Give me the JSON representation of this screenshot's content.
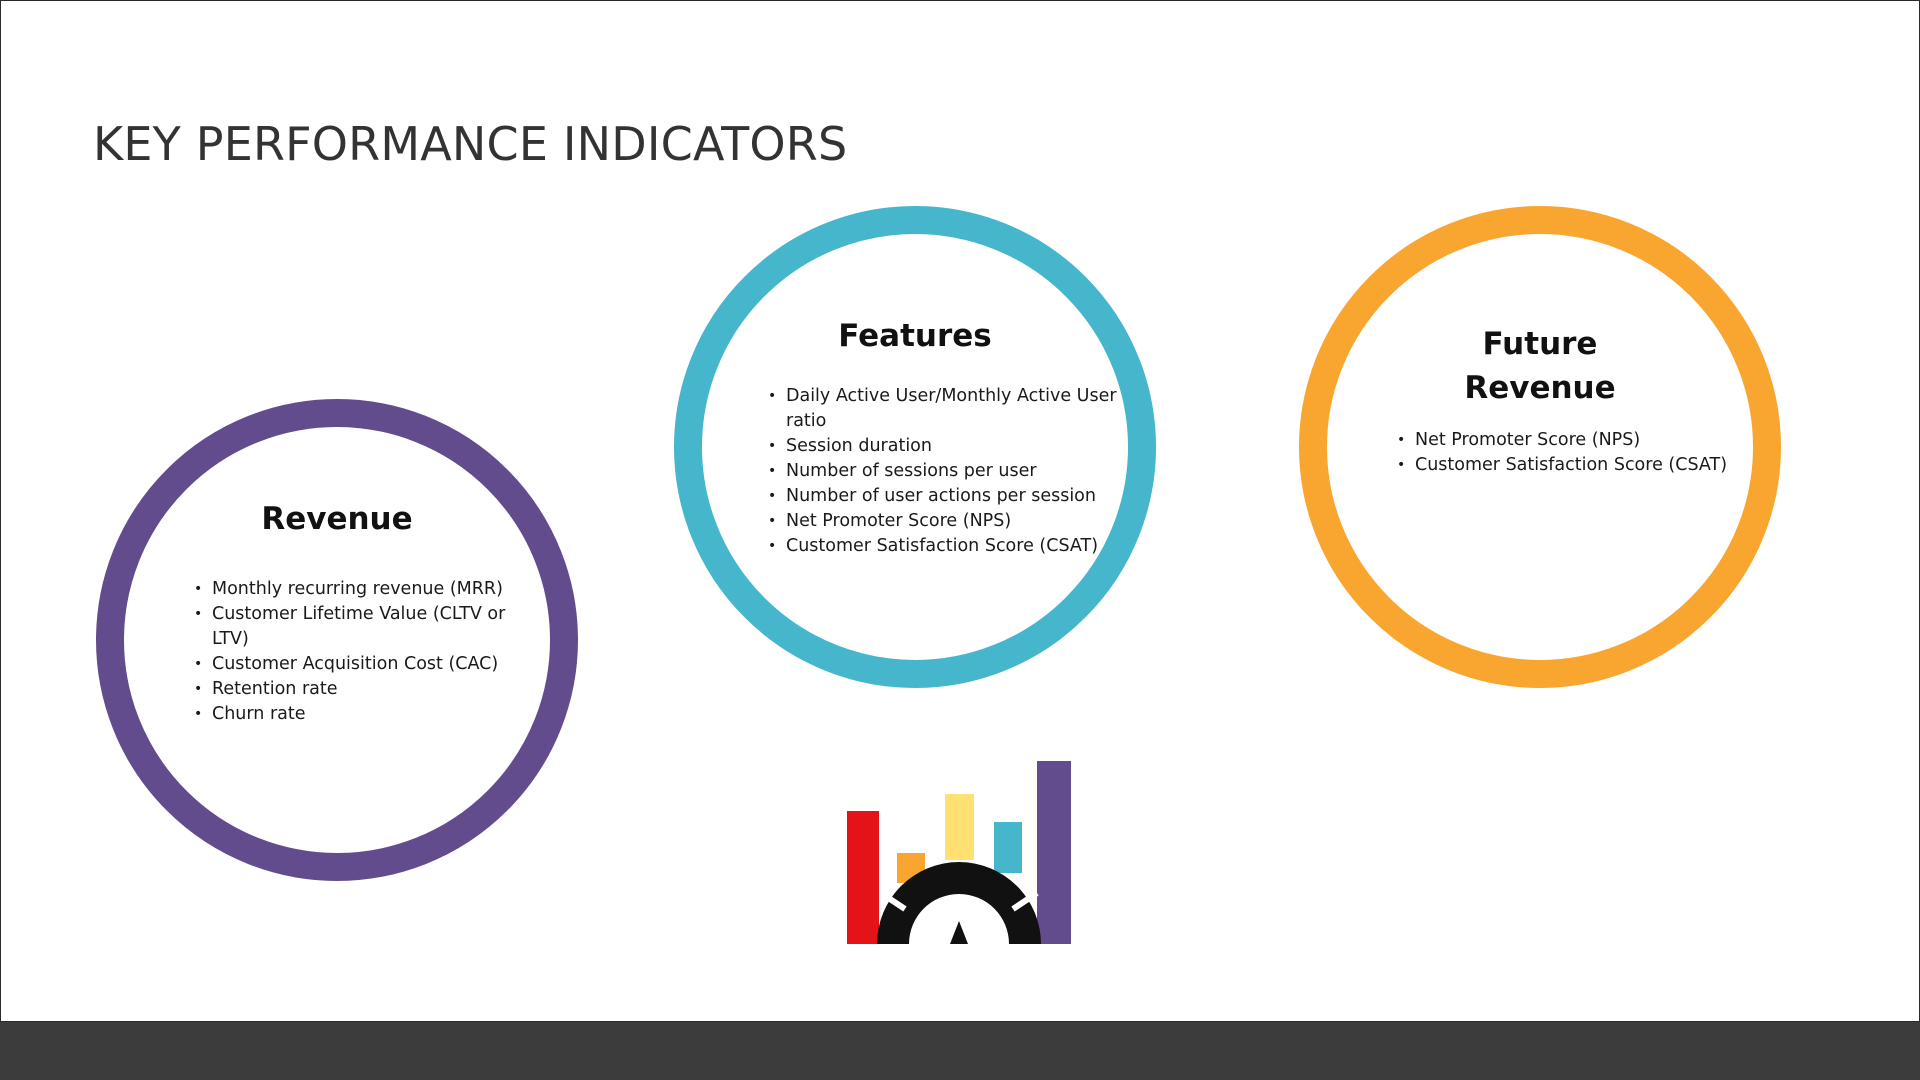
{
  "slide": {
    "title": "KEY PERFORMANCE INDICATORS"
  },
  "circles": [
    {
      "title_lines": [
        "Revenue"
      ],
      "ring_color": "#634c8e",
      "items": [
        "Monthly recurring revenue (MRR)",
        "Customer Lifetime Value (CLTV or LTV)",
        "Customer Acquisition Cost (CAC)",
        "Retention rate",
        "Churn rate"
      ]
    },
    {
      "title_lines": [
        "Features"
      ],
      "ring_color": "#45b6cc",
      "items": [
        "Daily Active User/Monthly Active User ratio",
        "Session duration",
        "Number of sessions per user",
        "Number of user actions per session",
        "Net Promoter Score (NPS)",
        "Customer Satisfaction Score (CSAT)"
      ]
    },
    {
      "title_lines": [
        "Future",
        "Revenue"
      ],
      "ring_color": "#f9a630",
      "items": [
        "Net Promoter Score (NPS)",
        "Customer Satisfaction Score (CSAT)"
      ]
    }
  ],
  "logo": {
    "icon": "bar-chart-gauge-logo-icon",
    "colors": {
      "red": "#e31318",
      "orange": "#f9a630",
      "yellow": "#ffe070",
      "teal": "#45b6cc",
      "purple": "#634c8e",
      "gauge": "#111111"
    }
  }
}
